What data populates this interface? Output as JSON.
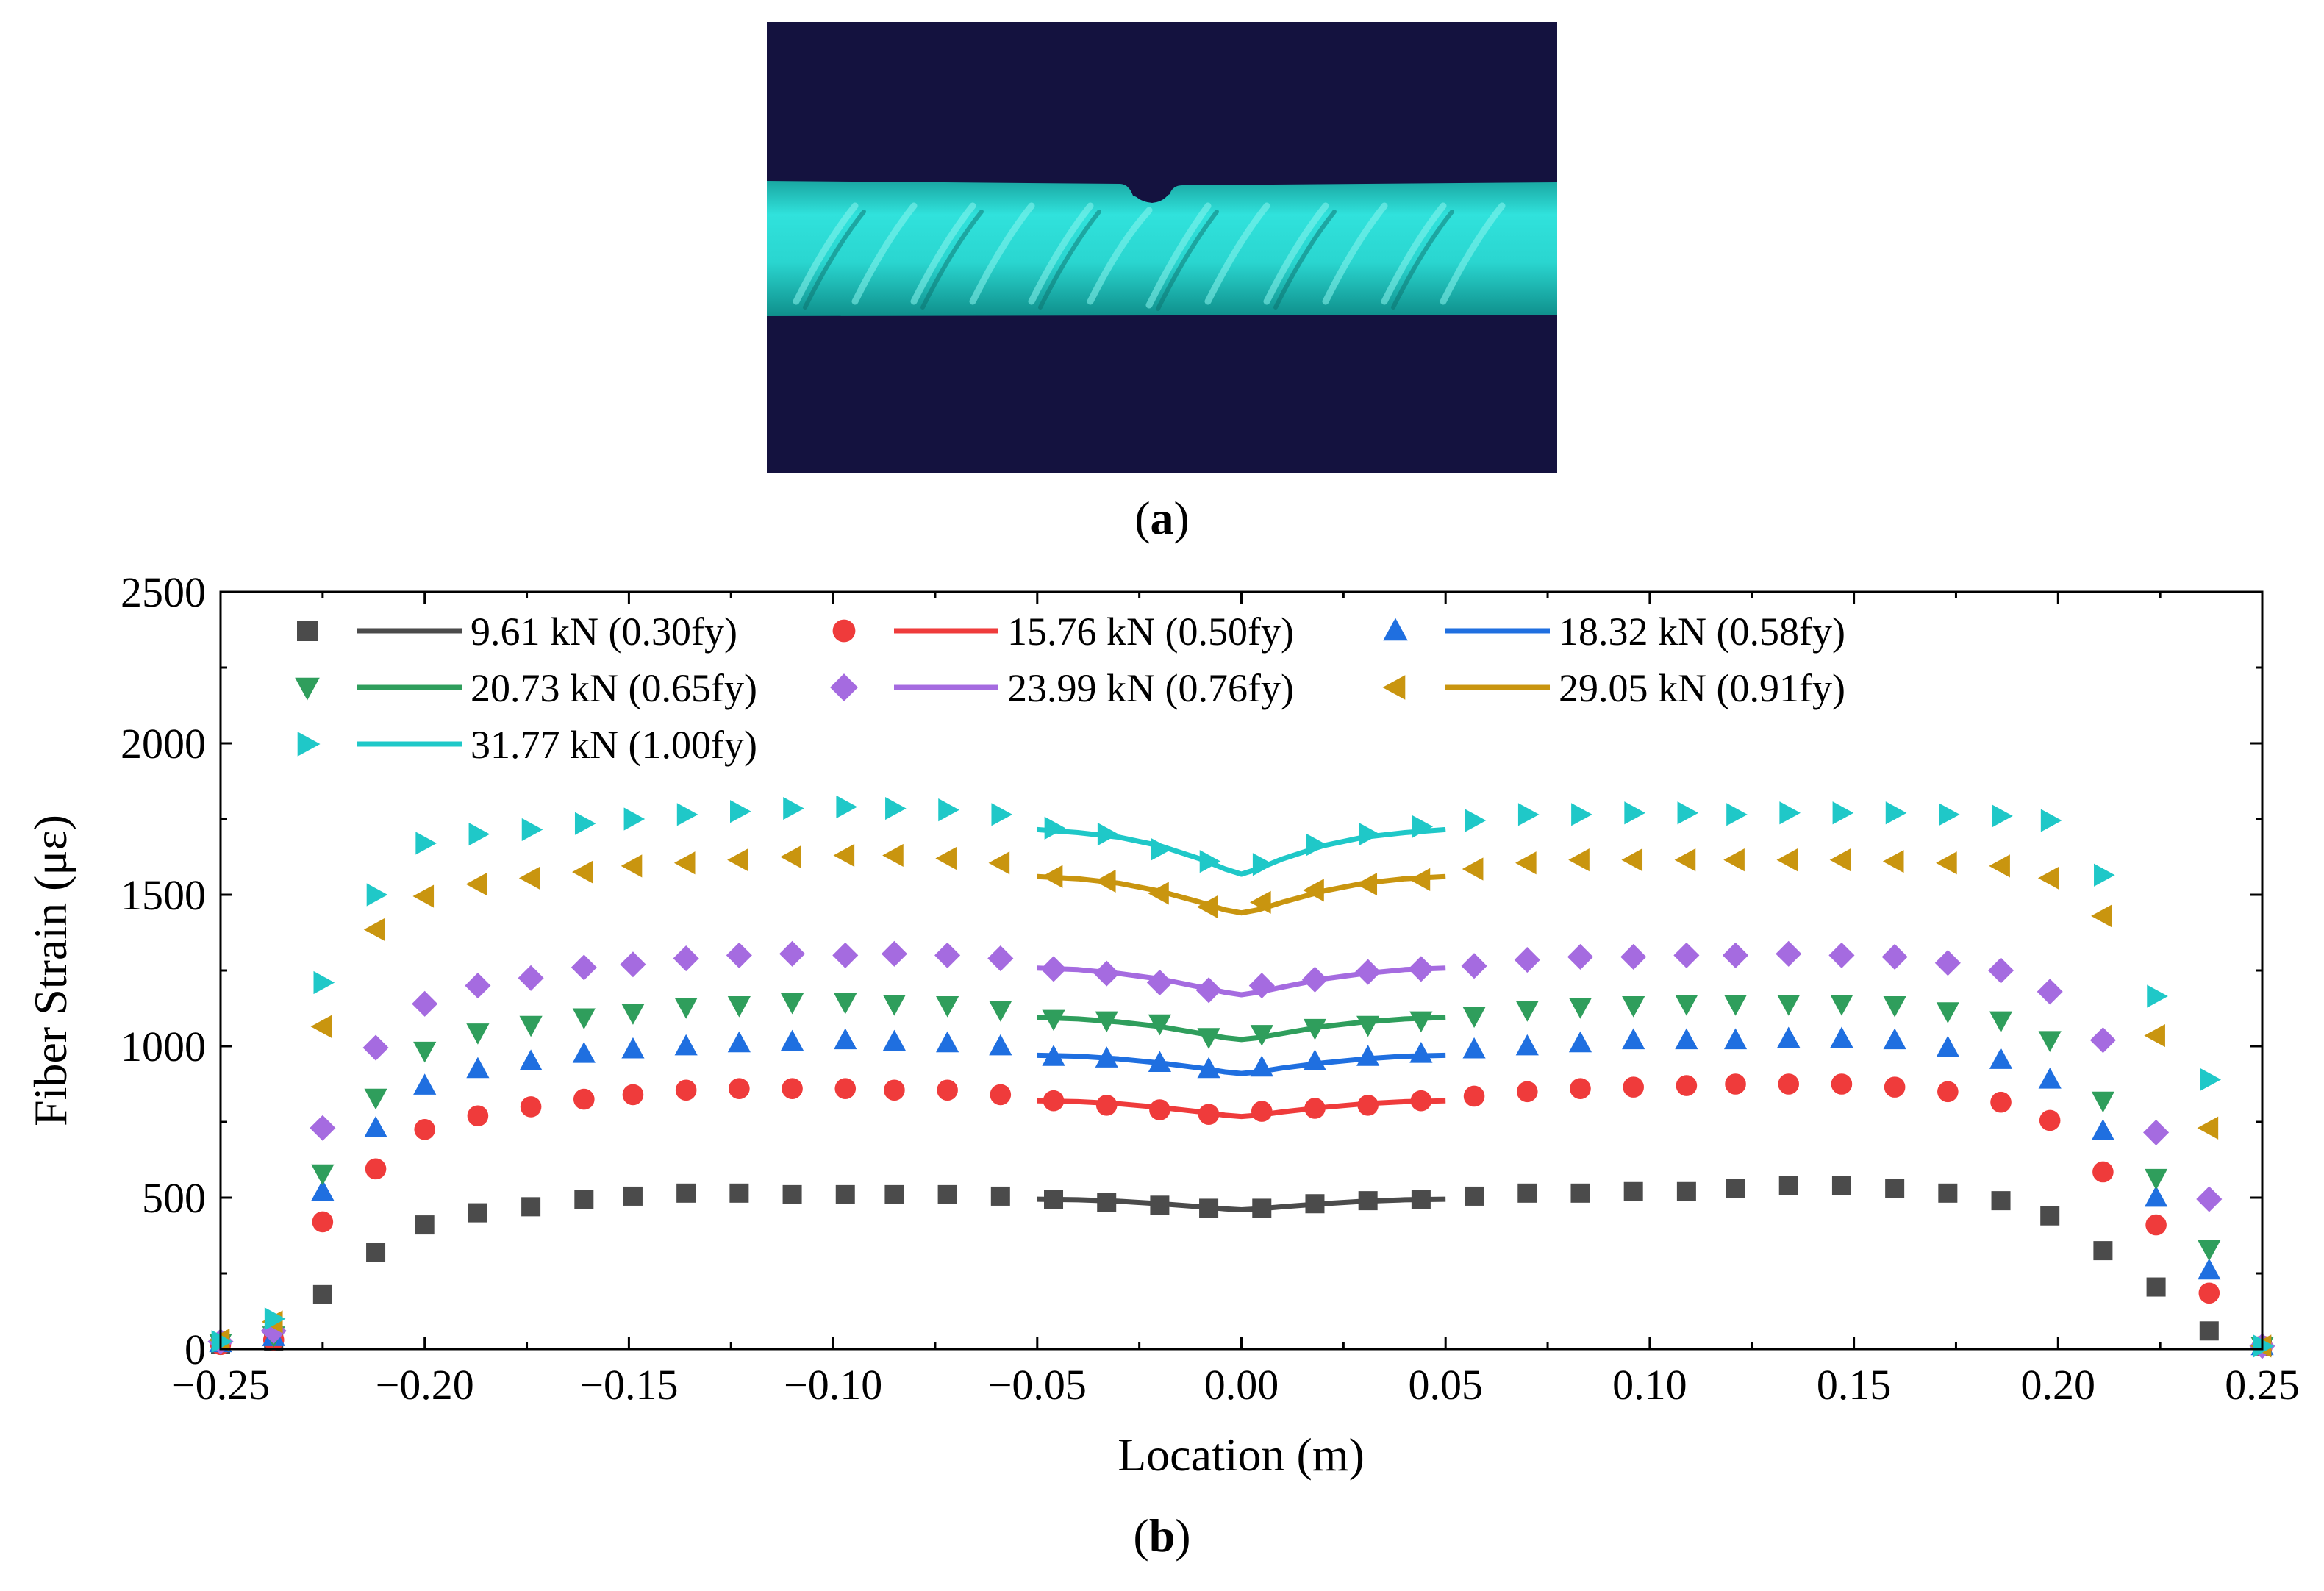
{
  "panel_a": {
    "image_description": "3D scan of ribbed steel rebar with a corrosion pit notch at mid-length",
    "colors": {
      "background": "#14123f",
      "bar": "#2ad6d0",
      "bar_shadow": "#0f8f8b",
      "rib": "#7ff0ea"
    }
  },
  "captions": {
    "a_open": "(",
    "a_letter": "a",
    "a_close": ")",
    "b_open": "(",
    "b_letter": "b",
    "b_close": ")"
  },
  "chart_data": {
    "type": "scatter",
    "xlabel": "Location (m)",
    "ylabel": "Fiber Strain (με)",
    "xlim": [
      -0.25,
      0.25
    ],
    "ylim": [
      0,
      2500
    ],
    "xticks": [
      -0.25,
      -0.2,
      -0.15,
      -0.1,
      -0.05,
      0.0,
      0.05,
      0.1,
      0.15,
      0.2,
      0.25
    ],
    "xtick_labels": [
      "−0.25",
      "−0.20",
      "−0.15",
      "−0.10",
      "−0.05",
      "0.00",
      "0.05",
      "0.10",
      "0.15",
      "0.20",
      "0.25"
    ],
    "yticks": [
      0,
      500,
      1000,
      1500,
      2000,
      2500
    ],
    "ytick_labels": [
      "0",
      "500",
      "1000",
      "1500",
      "2000",
      "2500"
    ],
    "x": [
      -0.25,
      -0.237,
      -0.225,
      -0.212,
      -0.2,
      -0.187,
      -0.174,
      -0.161,
      -0.149,
      -0.136,
      -0.123,
      -0.11,
      -0.097,
      -0.085,
      -0.072,
      -0.059,
      -0.046,
      -0.033,
      -0.02,
      -0.008,
      0.005,
      0.018,
      0.031,
      0.044,
      0.057,
      0.07,
      0.083,
      0.096,
      0.109,
      0.121,
      0.134,
      0.147,
      0.16,
      0.173,
      0.186,
      0.198,
      0.211,
      0.224,
      0.237,
      0.25
    ],
    "fit_x": [
      -0.05,
      -0.04,
      -0.03,
      -0.02,
      -0.01,
      -0.004,
      0.0,
      0.004,
      0.01,
      0.02,
      0.03,
      0.04,
      0.05
    ],
    "legend": {
      "position": "top-left",
      "columns": 3
    },
    "series": [
      {
        "name": "9.61 kN (0.30fy)",
        "color": "#4b4b4b",
        "marker": "square",
        "values": [
          15,
          25,
          180,
          320,
          410,
          450,
          470,
          495,
          505,
          515,
          515,
          510,
          510,
          510,
          510,
          505,
          495,
          485,
          475,
          465,
          465,
          480,
          490,
          495,
          505,
          515,
          515,
          520,
          520,
          530,
          540,
          540,
          530,
          515,
          490,
          440,
          325,
          205,
          60,
          10
        ],
        "fit": [
          495,
          493,
          488,
          480,
          470,
          463,
          460,
          463,
          470,
          480,
          488,
          493,
          495
        ]
      },
      {
        "name": "15.76 kN (0.50fy)",
        "color": "#ef3b3b",
        "marker": "circle",
        "values": [
          15,
          30,
          420,
          595,
          725,
          770,
          800,
          825,
          840,
          855,
          860,
          860,
          860,
          855,
          855,
          840,
          820,
          805,
          790,
          775,
          785,
          795,
          805,
          820,
          835,
          850,
          860,
          865,
          870,
          875,
          875,
          875,
          865,
          850,
          815,
          755,
          585,
          410,
          185,
          10
        ],
        "fit": [
          820,
          817,
          810,
          798,
          783,
          772,
          768,
          772,
          783,
          798,
          810,
          817,
          820
        ]
      },
      {
        "name": "18.32 kN (0.58fy)",
        "color": "#1f6fe0",
        "marker": "triangle-up",
        "values": [
          20,
          40,
          520,
          730,
          870,
          925,
          950,
          975,
          990,
          1000,
          1010,
          1015,
          1020,
          1015,
          1010,
          1000,
          965,
          960,
          945,
          925,
          930,
          950,
          965,
          975,
          990,
          1000,
          1010,
          1020,
          1020,
          1020,
          1025,
          1025,
          1020,
          995,
          955,
          890,
          720,
          500,
          260,
          10
        ],
        "fit": [
          970,
          967,
          958,
          945,
          928,
          915,
          910,
          915,
          928,
          945,
          958,
          967,
          970
        ]
      },
      {
        "name": "20.73 kN (0.65fy)",
        "color": "#2f9e5c",
        "marker": "triangle-down",
        "values": [
          20,
          45,
          580,
          830,
          985,
          1045,
          1070,
          1095,
          1110,
          1130,
          1135,
          1145,
          1145,
          1140,
          1135,
          1120,
          1090,
          1085,
          1075,
          1030,
          1040,
          1060,
          1070,
          1085,
          1100,
          1120,
          1130,
          1135,
          1140,
          1140,
          1140,
          1140,
          1135,
          1115,
          1085,
          1020,
          820,
          565,
          330,
          10
        ],
        "fit": [
          1095,
          1090,
          1080,
          1065,
          1042,
          1028,
          1022,
          1028,
          1042,
          1065,
          1080,
          1090,
          1095
        ]
      },
      {
        "name": "23.99 kN (0.76fy)",
        "color": "#a56be0",
        "marker": "diamond",
        "values": [
          25,
          60,
          730,
          995,
          1140,
          1200,
          1225,
          1260,
          1270,
          1290,
          1300,
          1305,
          1300,
          1305,
          1300,
          1290,
          1255,
          1240,
          1210,
          1185,
          1200,
          1220,
          1245,
          1255,
          1265,
          1285,
          1295,
          1295,
          1300,
          1300,
          1305,
          1300,
          1295,
          1275,
          1250,
          1180,
          1020,
          715,
          495,
          10
        ],
        "fit": [
          1258,
          1253,
          1240,
          1222,
          1195,
          1178,
          1170,
          1178,
          1195,
          1222,
          1240,
          1253,
          1258
        ]
      },
      {
        "name": "29.05 kN (0.91fy)",
        "color": "#c9950f",
        "marker": "triangle-left",
        "values": [
          30,
          90,
          1065,
          1385,
          1495,
          1535,
          1555,
          1575,
          1595,
          1605,
          1615,
          1625,
          1630,
          1630,
          1620,
          1605,
          1560,
          1545,
          1505,
          1460,
          1475,
          1515,
          1535,
          1550,
          1585,
          1605,
          1615,
          1615,
          1615,
          1615,
          1615,
          1615,
          1610,
          1605,
          1595,
          1555,
          1430,
          1035,
          730,
          10
        ],
        "fit": [
          1560,
          1553,
          1538,
          1512,
          1475,
          1450,
          1440,
          1450,
          1475,
          1512,
          1538,
          1553,
          1560
        ]
      },
      {
        "name": "31.77 kN (1.00fy)",
        "color": "#1fc8c8",
        "marker": "triangle-right",
        "values": [
          25,
          100,
          1210,
          1500,
          1670,
          1700,
          1715,
          1735,
          1750,
          1765,
          1775,
          1785,
          1790,
          1785,
          1780,
          1765,
          1720,
          1700,
          1650,
          1610,
          1600,
          1665,
          1700,
          1725,
          1745,
          1765,
          1765,
          1770,
          1770,
          1765,
          1770,
          1770,
          1770,
          1765,
          1760,
          1745,
          1565,
          1165,
          890,
          10
        ],
        "fit": [
          1715,
          1705,
          1690,
          1662,
          1618,
          1585,
          1568,
          1585,
          1618,
          1662,
          1690,
          1705,
          1715
        ]
      }
    ]
  }
}
